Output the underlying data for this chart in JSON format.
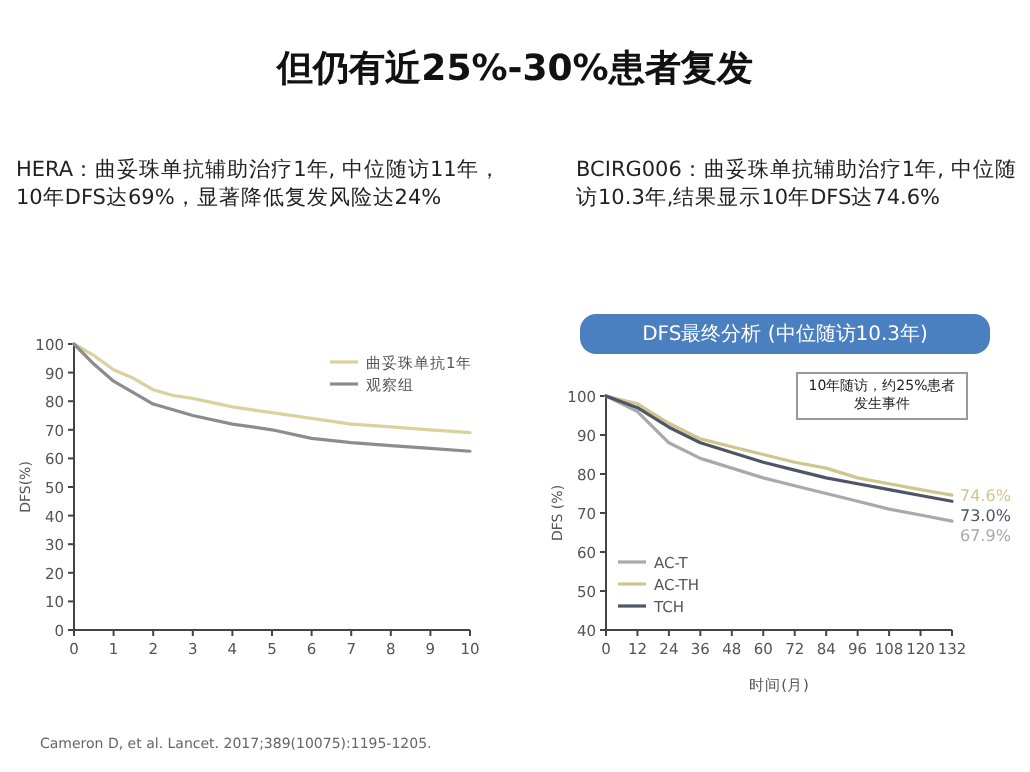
{
  "chart_data": [
    {
      "type": "line",
      "title": "但仍有近25%-30%患者复发",
      "subtitle": "HERA：曲妥珠单抗辅助治疗1年, 中位随访11年，10年DFS达69%，显著降低复发风险达24%",
      "ylabel": "DFS(%)",
      "x": [
        0,
        0.5,
        1,
        1.5,
        2,
        2.5,
        3,
        4,
        5,
        6,
        7,
        8,
        9,
        10
      ],
      "series": [
        {
          "name": "曲妥珠单抗1年",
          "color": "#d9d29b",
          "values": [
            100,
            96,
            91,
            88,
            84,
            82,
            81,
            78,
            76,
            74,
            72,
            71,
            70,
            69
          ]
        },
        {
          "name": "观察组",
          "color": "#8c8c8c",
          "values": [
            100,
            93,
            87,
            83,
            79,
            77,
            75,
            72,
            70,
            67,
            65.5,
            64.5,
            63.5,
            62.5
          ]
        }
      ],
      "xlim": [
        0,
        10
      ],
      "xticks": [
        0,
        1,
        2,
        3,
        4,
        5,
        6,
        7,
        8,
        9,
        10
      ],
      "ylim": [
        0,
        100
      ],
      "yticks": [
        0,
        10,
        20,
        30,
        40,
        50,
        60,
        70,
        80,
        90,
        100
      ],
      "legend": "top right",
      "line_style": "solid",
      "annotations": [
        "Cameron D, et al. Lancet. 2017;389(10075):1195-1205."
      ]
    },
    {
      "type": "line",
      "title": "DFS最终分析 (中位随访10.3年)",
      "subtitle": "BCIRG006：曲妥珠单抗辅助治疗1年, 中位随访10.3年,结果显示10年DFS达74.6%",
      "xlabel": "时间(月)",
      "ylabel": "DFS (%)",
      "x": [
        0,
        12,
        24,
        36,
        48,
        60,
        72,
        84,
        96,
        108,
        120,
        132
      ],
      "series": [
        {
          "name": "AC-T",
          "color": "#a9a9a9",
          "values": [
            100,
            96,
            88,
            84,
            81.5,
            79,
            77,
            75,
            73,
            71,
            69.5,
            67.9
          ],
          "value_labels": [
            null,
            null,
            null,
            null,
            null,
            null,
            null,
            null,
            null,
            null,
            null,
            "67.9%"
          ]
        },
        {
          "name": "AC-TH",
          "color": "#cfc68e",
          "values": [
            100,
            98,
            93,
            89,
            87,
            85,
            83,
            81.5,
            79,
            77.5,
            76,
            74.6
          ],
          "value_labels": [
            null,
            null,
            null,
            null,
            null,
            null,
            null,
            null,
            null,
            null,
            null,
            "74.6%"
          ]
        },
        {
          "name": "TCH",
          "color": "#4d5566",
          "values": [
            100,
            97,
            92,
            88,
            85.5,
            83,
            81,
            79,
            77.5,
            76,
            74.5,
            73.0
          ],
          "value_labels": [
            null,
            null,
            null,
            null,
            null,
            null,
            null,
            null,
            null,
            null,
            null,
            "73.0%"
          ]
        }
      ],
      "xlim": [
        0,
        132
      ],
      "xticks": [
        0,
        12,
        24,
        36,
        48,
        60,
        72,
        84,
        96,
        108,
        120,
        132
      ],
      "ylim": [
        40,
        100
      ],
      "yticks": [
        40,
        50,
        60,
        70,
        80,
        90,
        100
      ],
      "legend": "bottom left",
      "line_style": "solid",
      "annotations": [
        "10年随访，约25%患者发生事件"
      ]
    }
  ]
}
